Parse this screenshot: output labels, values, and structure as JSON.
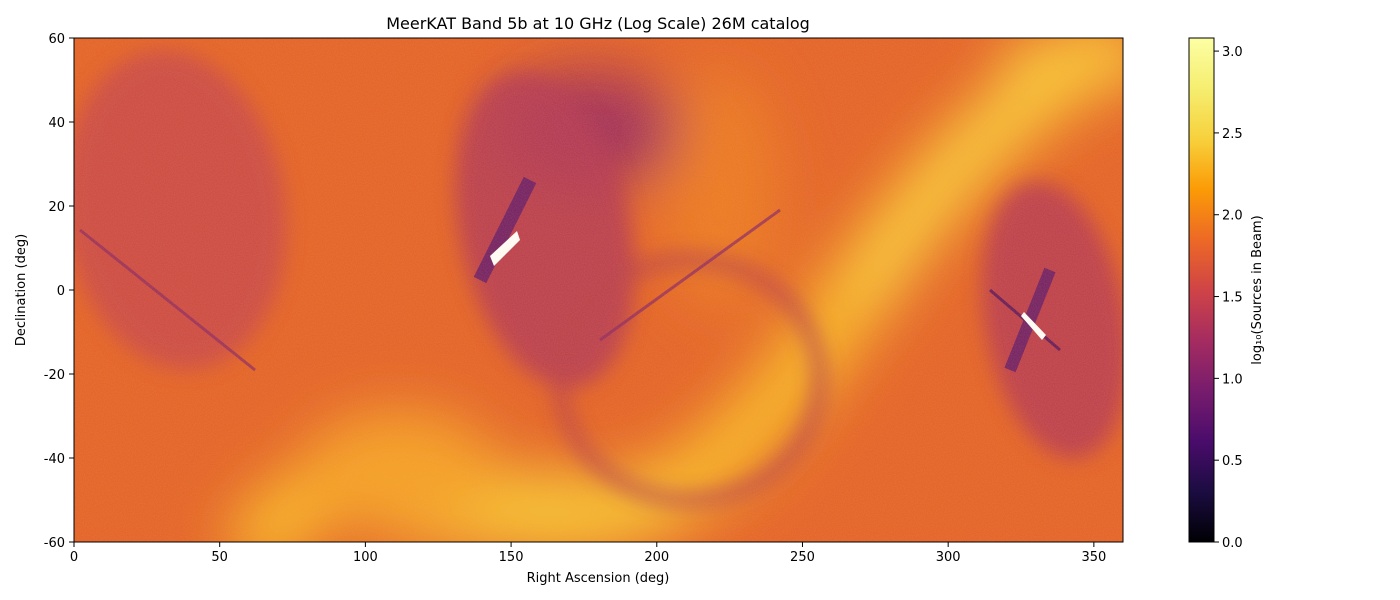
{
  "chart_data": {
    "type": "heatmap",
    "title": "MeerKAT Band 5b at 10 GHz (Log Scale) 26M catalog",
    "xlabel": "Right Ascension (deg)",
    "ylabel": "Declination (deg)",
    "xlim": [
      0,
      360
    ],
    "ylim": [
      -60,
      60
    ],
    "xticks": [
      0,
      50,
      100,
      150,
      200,
      250,
      300,
      350
    ],
    "yticks": [
      -60,
      -40,
      -20,
      0,
      20,
      40,
      60
    ],
    "colorbar": {
      "label": "log₁₀(Sources in Beam)",
      "colormap": "inferno",
      "range": [
        0.0,
        3.08
      ],
      "ticks": [
        "0.0",
        "0.5",
        "1.0",
        "1.5",
        "2.0",
        "2.5",
        "3.0"
      ]
    },
    "features": [
      {
        "name": "galactic-plane",
        "level": 2.75
      },
      {
        "name": "southern-dense-region",
        "level": 2.6
      },
      {
        "name": "scan-footprint-ra150",
        "level": 1.6
      },
      {
        "name": "scan-footprint-ra330",
        "level": 1.6
      },
      {
        "name": "scan-footprint-ra30",
        "level": 1.75
      }
    ],
    "background_level": 2.1
  }
}
